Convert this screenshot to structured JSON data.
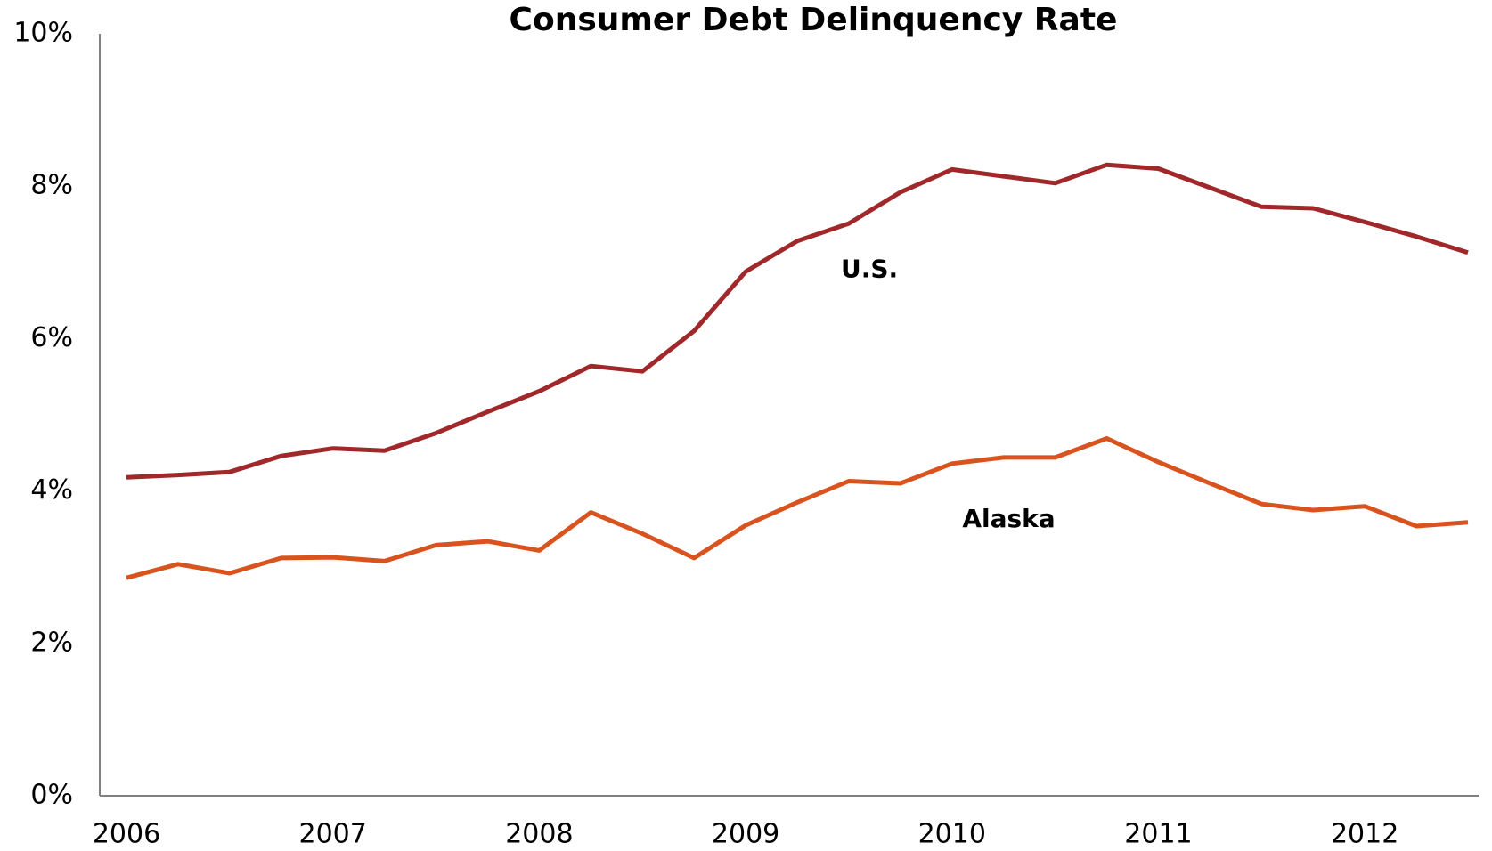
{
  "chart_data": {
    "type": "line",
    "title": "Consumer Debt Delinquency Rate",
    "categories": [
      "2006",
      null,
      null,
      null,
      "2007",
      null,
      null,
      null,
      "2008",
      null,
      null,
      null,
      "2009",
      null,
      null,
      null,
      "2010",
      null,
      null,
      null,
      "2011",
      null,
      null,
      null,
      "2012",
      null,
      null
    ],
    "series": [
      {
        "name": "U.S.",
        "color": "#a0282a",
        "values": [
          4.18,
          4.21,
          4.25,
          4.46,
          4.56,
          4.53,
          4.76,
          5.04,
          5.31,
          5.64,
          5.57,
          6.1,
          6.88,
          7.28,
          7.51,
          7.92,
          8.22,
          8.13,
          8.04,
          8.28,
          8.23,
          7.98,
          7.73,
          7.71,
          7.53,
          7.34,
          7.13
        ]
      },
      {
        "name": "Alaska",
        "color": "#d9531e",
        "values": [
          2.86,
          3.04,
          2.92,
          3.12,
          3.13,
          3.08,
          3.29,
          3.34,
          3.22,
          3.72,
          3.44,
          3.12,
          3.55,
          3.85,
          4.13,
          4.1,
          4.36,
          4.44,
          4.44,
          4.69,
          4.38,
          4.1,
          3.83,
          3.75,
          3.8,
          3.54,
          3.59
        ]
      }
    ],
    "ylim": [
      0,
      10
    ],
    "yticks": [
      {
        "value": 0,
        "label": "0%"
      },
      {
        "value": 2,
        "label": "2%"
      },
      {
        "value": 4,
        "label": "4%"
      },
      {
        "value": 6,
        "label": "6%"
      },
      {
        "value": 8,
        "label": "8%"
      },
      {
        "value": 10,
        "label": "10%"
      }
    ],
    "grid": false
  }
}
